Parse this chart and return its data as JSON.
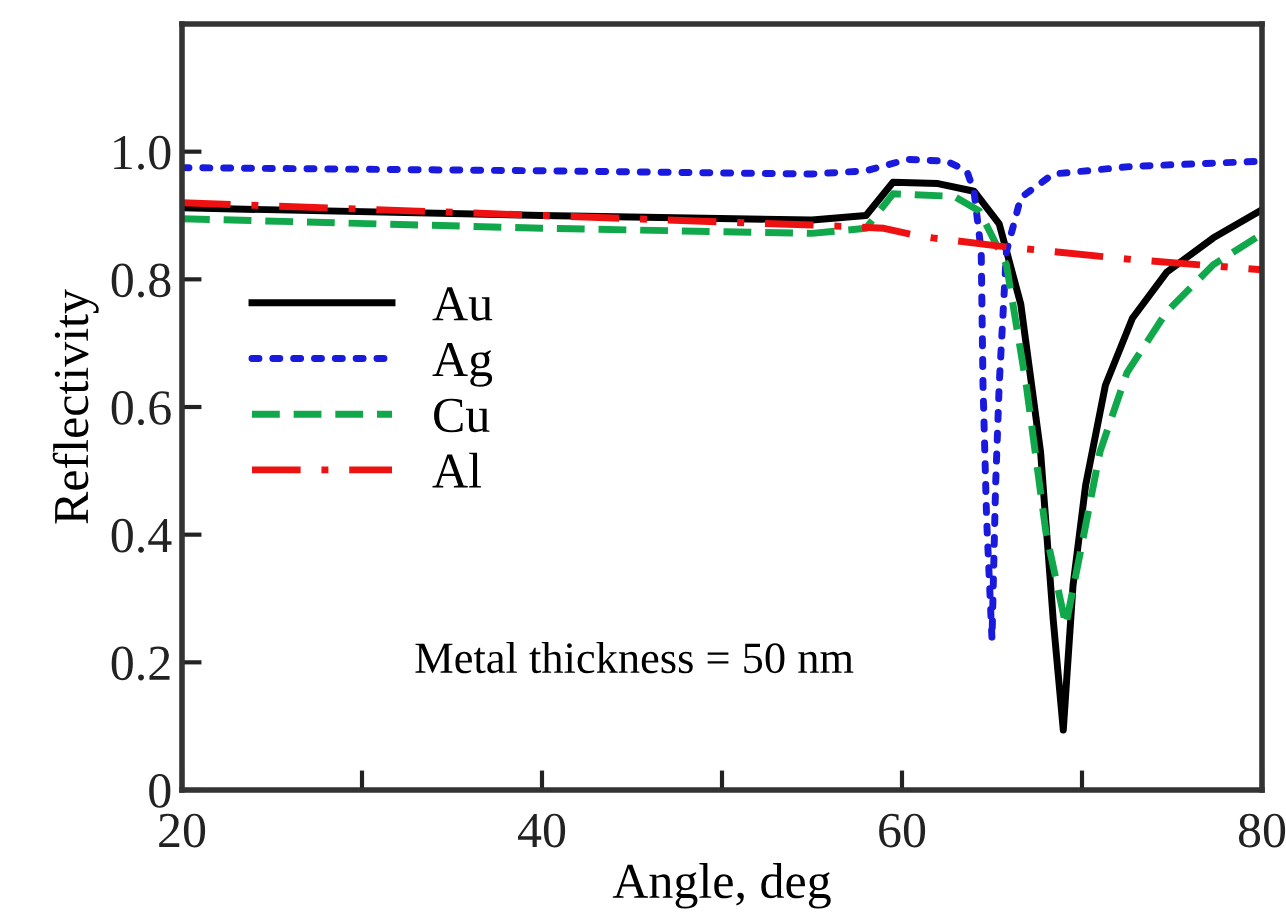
{
  "chart_data": {
    "type": "line",
    "xlabel": "Angle, deg",
    "ylabel": "Reflectivity",
    "xlim": [
      20,
      80
    ],
    "ylim": [
      0,
      1.2
    ],
    "xticks": [
      20,
      {
        "value": 30,
        "label": null
      },
      40,
      {
        "value": 50,
        "label": null
      },
      60,
      {
        "value": 70,
        "label": null
      },
      80
    ],
    "yticks": [
      0,
      0.2,
      0.4,
      0.6,
      0.8,
      {
        "value": 1,
        "label": "1.0"
      }
    ],
    "grid": false,
    "legend": "left",
    "annotations": [
      "Metal thickness = 50 nm"
    ],
    "series": [
      {
        "name": "Au",
        "color": "#000000",
        "line_style": "solid",
        "x": [
          20,
          40,
          55,
          58,
          59.5,
          62,
          64,
          65.4,
          66.6,
          67.7,
          68.4,
          68.96,
          69.5,
          70.2,
          71.3,
          72.8,
          74.7,
          77.3,
          80
        ],
        "values": [
          0.912,
          0.9,
          0.893,
          0.9,
          0.952,
          0.95,
          0.938,
          0.887,
          0.761,
          0.529,
          0.267,
          0.094,
          0.32,
          0.477,
          0.634,
          0.739,
          0.811,
          0.865,
          0.909
        ]
      },
      {
        "name": "Ag",
        "color": "#1a1adf",
        "line_style": "dotted",
        "x": [
          20,
          40,
          55,
          58,
          60.3,
          62.5,
          63.6,
          64,
          64.4,
          64.5,
          64.7,
          65,
          65.2,
          65.4,
          65.8,
          66.6,
          68.4,
          72.8,
          80
        ],
        "values": [
          0.975,
          0.97,
          0.965,
          0.97,
          0.988,
          0.985,
          0.97,
          0.938,
          0.844,
          0.635,
          0.425,
          0.236,
          0.477,
          0.635,
          0.843,
          0.928,
          0.965,
          0.977,
          0.985
        ]
      },
      {
        "name": "Cu",
        "color": "#10a84a",
        "line_style": "dashed",
        "x": [
          20,
          40,
          55,
          58,
          59.5,
          62.9,
          64.3,
          65.8,
          66.9,
          68,
          69.1,
          69.9,
          71,
          72.5,
          74.7,
          77.3,
          80
        ],
        "values": [
          0.895,
          0.88,
          0.872,
          0.88,
          0.934,
          0.93,
          0.907,
          0.823,
          0.635,
          0.403,
          0.258,
          0.371,
          0.53,
          0.654,
          0.749,
          0.823,
          0.871
        ]
      },
      {
        "name": "Al",
        "color": "#ee1111",
        "line_style": "dashdot",
        "x": [
          20,
          40,
          55,
          59,
          60.6,
          61.7,
          65.4,
          72.8,
          80
        ],
        "values": [
          0.92,
          0.9,
          0.885,
          0.88,
          0.87,
          0.865,
          0.852,
          0.831,
          0.815
        ]
      }
    ]
  }
}
